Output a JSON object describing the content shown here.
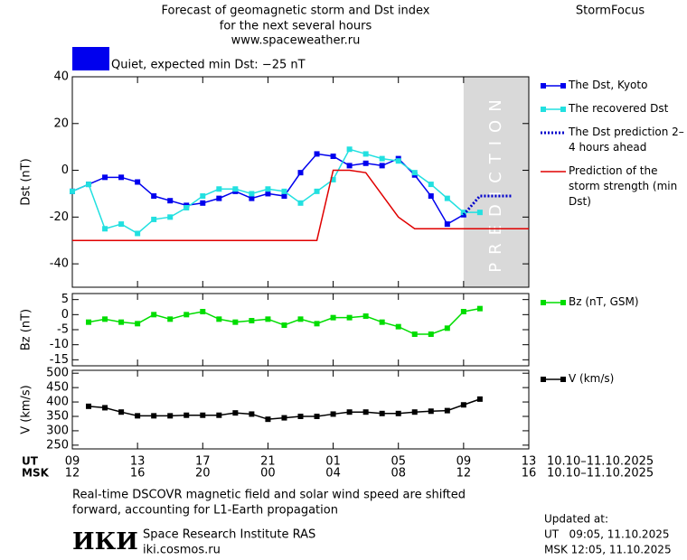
{
  "header": {
    "title_lines": [
      "Forecast of geomagnetic storm and Dst index",
      "for the next several hours",
      "www.spaceweather.ru"
    ],
    "brand": "StormFocus",
    "status": {
      "text": "Quiet, expected min Dst: −25 nT",
      "color": "#0000ee"
    }
  },
  "chart_data": [
    {
      "type": "line",
      "ylabel": "Dst (nT)",
      "xlim": [
        0,
        28
      ],
      "ylim": [
        -50,
        40
      ],
      "yticks": [
        -40,
        -20,
        0,
        20,
        40
      ],
      "prediction_region": {
        "label": "PREDICTION",
        "xlim": [
          24,
          28
        ],
        "color": "#d9d9d9"
      },
      "series": [
        {
          "name": "The Dst, Kyoto",
          "color": "#0000ee",
          "marker": "square",
          "style": "solid",
          "x": [
            0,
            1,
            2,
            3,
            4,
            5,
            6,
            7,
            8,
            9,
            10,
            11,
            12,
            13,
            14,
            15,
            16,
            17,
            18,
            19,
            20,
            21,
            22,
            23,
            24
          ],
          "values": [
            -9,
            -6,
            -3,
            -3,
            -5,
            -11,
            -13,
            -15,
            -14,
            -12,
            -9,
            -12,
            -10,
            -11,
            -1,
            7,
            6,
            2,
            3,
            2,
            5,
            -2,
            -11,
            -23,
            -19
          ]
        },
        {
          "name": "The recovered Dst",
          "color": "#22e0e0",
          "marker": "square",
          "style": "solid",
          "x": [
            0,
            1,
            2,
            3,
            4,
            5,
            6,
            7,
            8,
            9,
            10,
            11,
            12,
            13,
            14,
            15,
            16,
            17,
            18,
            19,
            20,
            21,
            22,
            23,
            24,
            25
          ],
          "values": [
            -9,
            -6,
            -25,
            -23,
            -27,
            -21,
            -20,
            -16,
            -11,
            -8,
            -8,
            -10,
            -8,
            -9,
            -14,
            -9,
            -4,
            9,
            7,
            5,
            4,
            -1,
            -6,
            -12,
            -18,
            -18
          ]
        },
        {
          "name": "The Dst prediction 2–4 hours ahead",
          "color": "#0000cc",
          "marker": "none",
          "style": "dotted",
          "x": [
            24,
            25,
            27
          ],
          "values": [
            -19,
            -11,
            -11
          ]
        },
        {
          "name": "Prediction of the storm strength (min Dst)",
          "color": "#e00000",
          "marker": "none",
          "style": "solid",
          "x": [
            0,
            15,
            16,
            17,
            18,
            20,
            21,
            28
          ],
          "values": [
            -30,
            -30,
            0,
            0,
            -1,
            -20,
            -25,
            -25
          ]
        }
      ]
    },
    {
      "type": "line",
      "ylabel": "Bz (nT)",
      "xlim": [
        0,
        28
      ],
      "ylim": [
        -17,
        7
      ],
      "yticks": [
        -15,
        -10,
        -5,
        0,
        5
      ],
      "series": [
        {
          "name": "Bz (nT, GSM)",
          "color": "#00dd00",
          "marker": "square",
          "style": "solid",
          "x": [
            1,
            2,
            3,
            4,
            5,
            6,
            7,
            8,
            9,
            10,
            11,
            12,
            13,
            14,
            15,
            16,
            17,
            18,
            19,
            20,
            21,
            22,
            23,
            24,
            25
          ],
          "values": [
            -2.5,
            -1.5,
            -2.5,
            -3,
            0,
            -1.5,
            0,
            1,
            -1.5,
            -2.5,
            -2,
            -1.5,
            -3.5,
            -1.5,
            -3,
            -1,
            -1,
            -0.5,
            -2.5,
            -4,
            -6.5,
            -6.5,
            -4.5,
            1,
            2
          ]
        }
      ]
    },
    {
      "type": "line",
      "ylabel": "V (km/s)",
      "xlim": [
        0,
        28
      ],
      "ylim": [
        237,
        510
      ],
      "yticks": [
        250,
        300,
        350,
        400,
        450,
        500
      ],
      "xticks": [
        {
          "value": 0,
          "label": "09"
        },
        {
          "value": 4,
          "label": "13"
        },
        {
          "value": 8,
          "label": "17"
        },
        {
          "value": 12,
          "label": "21"
        },
        {
          "value": 16,
          "label": "01"
        },
        {
          "value": 20,
          "label": "05"
        },
        {
          "value": 24,
          "label": "09"
        },
        {
          "value": 28,
          "label": "13"
        }
      ],
      "xticks_msk": [
        "12",
        "16",
        "20",
        "00",
        "04",
        "08",
        "12",
        "16"
      ],
      "xaxis_rows": [
        "UT",
        "MSK"
      ],
      "xranges": [
        "10.10–11.10.2025",
        "10.10–11.10.2025"
      ],
      "series": [
        {
          "name": "V (km/s)",
          "color": "#000000",
          "marker": "square",
          "style": "solid",
          "x": [
            1,
            2,
            3,
            4,
            5,
            6,
            7,
            8,
            9,
            10,
            11,
            12,
            13,
            14,
            15,
            16,
            17,
            18,
            19,
            20,
            21,
            22,
            23,
            24,
            25
          ],
          "values": [
            385,
            380,
            365,
            352,
            352,
            352,
            354,
            354,
            354,
            362,
            358,
            340,
            345,
            350,
            350,
            358,
            365,
            365,
            360,
            360,
            365,
            368,
            370,
            390,
            410
          ]
        }
      ]
    }
  ],
  "footer": {
    "note_lines": [
      "Real-time DSCOVR magnetic field and solar wind speed are shifted",
      "forward, accounting for L1-Earth propagation"
    ],
    "logo": "ИКИ",
    "institute": "Space Research Institute RAS",
    "site": "iki.cosmos.ru",
    "updated_label": "Updated at:",
    "updated_ut": "UT   09:05, 11.10.2025",
    "updated_msk": "MSK 12:05, 11.10.2025"
  }
}
